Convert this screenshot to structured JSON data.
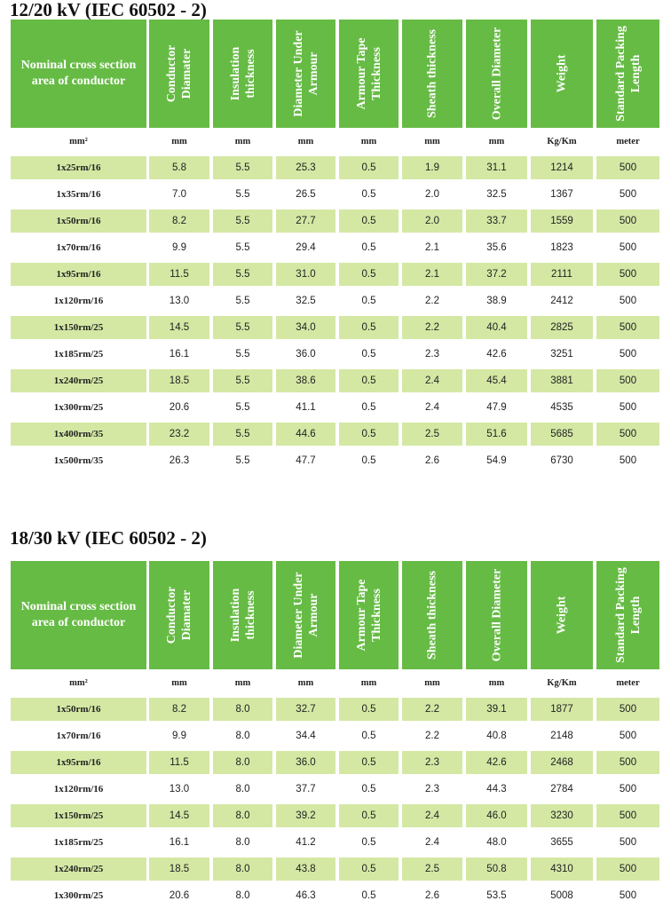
{
  "tables": [
    {
      "title": "12/20 kV (IEC 60502 - 2)",
      "headers": [
        "Nominal cross section area of conductor",
        "Conductor Diamater",
        "Insulation thickness",
        "Diameter Under Armour",
        "Armour Tape Thickness",
        "Sheath thickness",
        "Overall Diameter",
        "Weight",
        "Standard Packing Length"
      ],
      "units": [
        "mm²",
        "mm",
        "mm",
        "mm",
        "mm",
        "mm",
        "mm",
        "Kg/Km",
        "meter"
      ],
      "rows": [
        [
          "1x25rm/16",
          "5.8",
          "5.5",
          "25.3",
          "0.5",
          "1.9",
          "31.1",
          "1214",
          "500"
        ],
        [
          "1x35rm/16",
          "7.0",
          "5.5",
          "26.5",
          "0.5",
          "2.0",
          "32.5",
          "1367",
          "500"
        ],
        [
          "1x50rm/16",
          "8.2",
          "5.5",
          "27.7",
          "0.5",
          "2.0",
          "33.7",
          "1559",
          "500"
        ],
        [
          "1x70rm/16",
          "9.9",
          "5.5",
          "29.4",
          "0.5",
          "2.1",
          "35.6",
          "1823",
          "500"
        ],
        [
          "1x95rm/16",
          "11.5",
          "5.5",
          "31.0",
          "0.5",
          "2.1",
          "37.2",
          "2111",
          "500"
        ],
        [
          "1x120rm/16",
          "13.0",
          "5.5",
          "32.5",
          "0.5",
          "2.2",
          "38.9",
          "2412",
          "500"
        ],
        [
          "1x150rm/25",
          "14.5",
          "5.5",
          "34.0",
          "0.5",
          "2.2",
          "40.4",
          "2825",
          "500"
        ],
        [
          "1x185rm/25",
          "16.1",
          "5.5",
          "36.0",
          "0.5",
          "2.3",
          "42.6",
          "3251",
          "500"
        ],
        [
          "1x240rm/25",
          "18.5",
          "5.5",
          "38.6",
          "0.5",
          "2.4",
          "45.4",
          "3881",
          "500"
        ],
        [
          "1x300rm/25",
          "20.6",
          "5.5",
          "41.1",
          "0.5",
          "2.4",
          "47.9",
          "4535",
          "500"
        ],
        [
          "1x400rm/35",
          "23.2",
          "5.5",
          "44.6",
          "0.5",
          "2.5",
          "51.6",
          "5685",
          "500"
        ],
        [
          "1x500rm/35",
          "26.3",
          "5.5",
          "47.7",
          "0.5",
          "2.6",
          "54.9",
          "6730",
          "500"
        ]
      ]
    },
    {
      "title": "18/30 kV (IEC 60502 - 2)",
      "headers": [
        "Nominal cross section area of conductor",
        "Conductor Diamater",
        "Insulation thickness",
        "Diameter Under Armour",
        "Armour Tape Thickness",
        "Sheath thickness",
        "Overall Diameter",
        "Weight",
        "Standard Packing Length"
      ],
      "units": [
        "mm²",
        "mm",
        "mm",
        "mm",
        "mm",
        "mm",
        "mm",
        "Kg/Km",
        "meter"
      ],
      "rows": [
        [
          "1x50rm/16",
          "8.2",
          "8.0",
          "32.7",
          "0.5",
          "2.2",
          "39.1",
          "1877",
          "500"
        ],
        [
          "1x70rm/16",
          "9.9",
          "8.0",
          "34.4",
          "0.5",
          "2.2",
          "40.8",
          "2148",
          "500"
        ],
        [
          "1x95rm/16",
          "11.5",
          "8.0",
          "36.0",
          "0.5",
          "2.3",
          "42.6",
          "2468",
          "500"
        ],
        [
          "1x120rm/16",
          "13.0",
          "8.0",
          "37.7",
          "0.5",
          "2.3",
          "44.3",
          "2784",
          "500"
        ],
        [
          "1x150rm/25",
          "14.5",
          "8.0",
          "39.2",
          "0.5",
          "2.4",
          "46.0",
          "3230",
          "500"
        ],
        [
          "1x185rm/25",
          "16.1",
          "8.0",
          "41.2",
          "0.5",
          "2.4",
          "48.0",
          "3655",
          "500"
        ],
        [
          "1x240rm/25",
          "18.5",
          "8.0",
          "43.8",
          "0.5",
          "2.5",
          "50.8",
          "4310",
          "500"
        ],
        [
          "1x300rm/25",
          "20.6",
          "8.0",
          "46.3",
          "0.5",
          "2.6",
          "53.5",
          "5008",
          "500"
        ]
      ]
    }
  ]
}
